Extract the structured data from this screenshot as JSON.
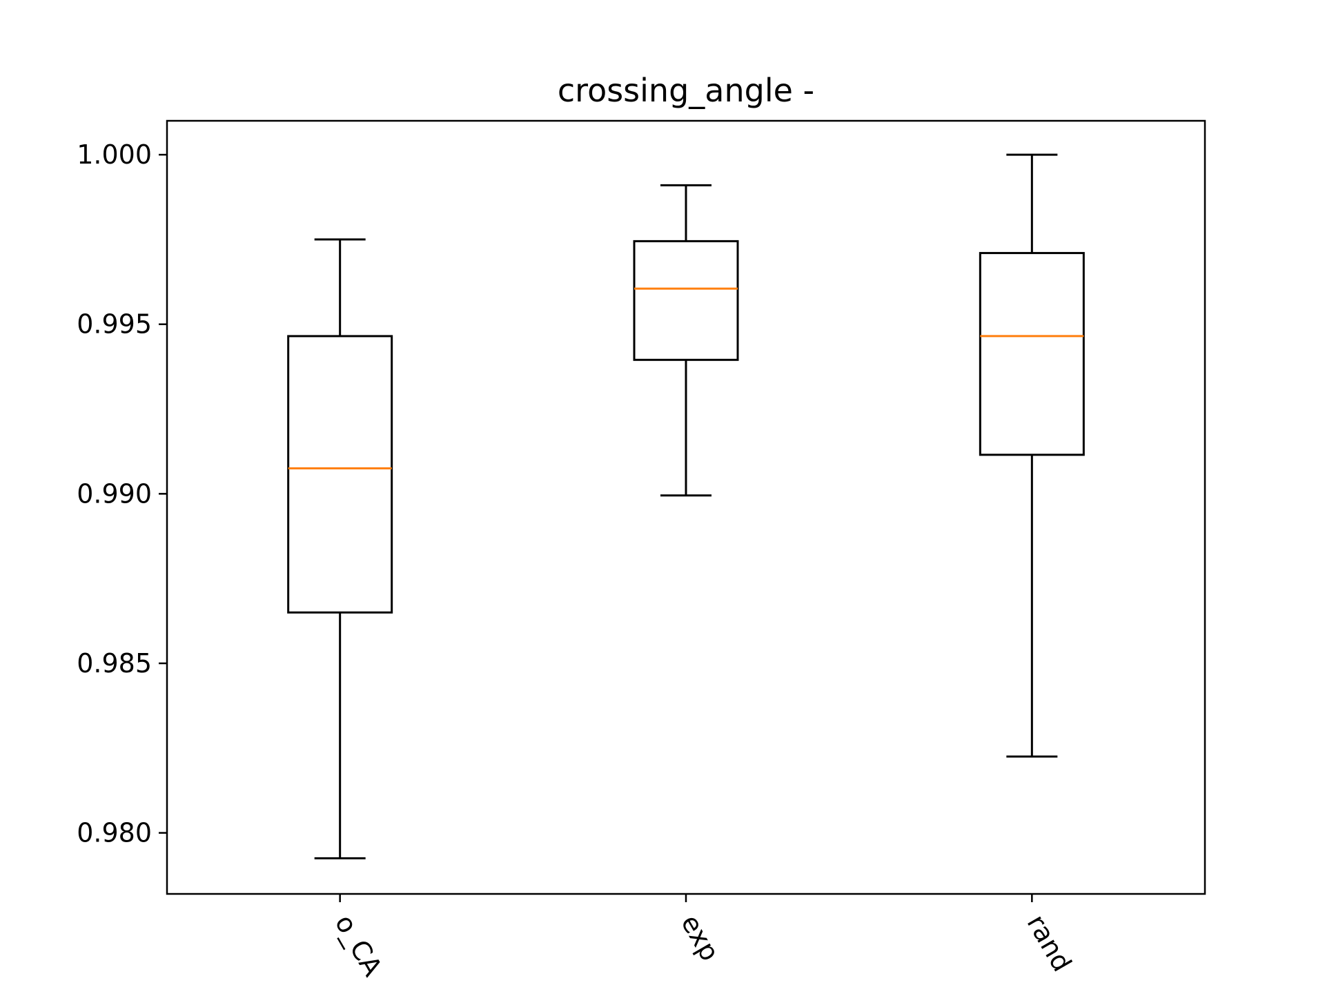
{
  "chart_data": {
    "type": "boxplot",
    "title": "crossing_angle -",
    "xlabel": "",
    "ylabel": "",
    "categories": [
      "o_CA",
      "exp",
      "rand"
    ],
    "boxes": [
      {
        "category": "o_CA",
        "whisker_low": 0.97925,
        "q1": 0.9865,
        "median": 0.99075,
        "q3": 0.99465,
        "whisker_high": 0.9975
      },
      {
        "category": "exp",
        "whisker_low": 0.98995,
        "q1": 0.99395,
        "median": 0.99605,
        "q3": 0.99745,
        "whisker_high": 0.9991
      },
      {
        "category": "rand",
        "whisker_low": 0.98225,
        "q1": 0.99115,
        "median": 0.99465,
        "q3": 0.9971,
        "whisker_high": 1.0
      }
    ],
    "yticks": [
      "0.980",
      "0.985",
      "0.990",
      "0.995",
      "1.000"
    ],
    "ylim": [
      0.9782,
      1.001
    ],
    "grid": false,
    "colors": {
      "box": "#000000",
      "median": "#ff7f0e"
    }
  }
}
